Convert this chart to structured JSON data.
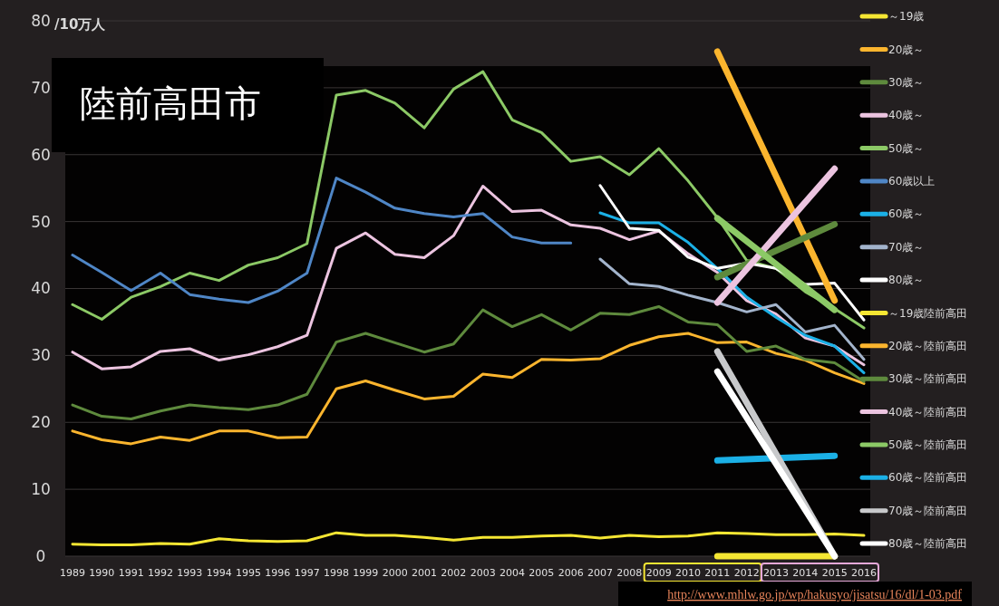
{
  "chart_data": {
    "type": "line",
    "ylabel": "/10万人",
    "categories": [
      "1989",
      "1990",
      "1991",
      "1992",
      "1993",
      "1994",
      "1995",
      "1996",
      "1997",
      "1998",
      "1999",
      "2000",
      "2001",
      "2002",
      "2003",
      "2004",
      "2005",
      "2006",
      "2007",
      "2008",
      "2009",
      "2010",
      "2011",
      "2012",
      "2013",
      "2014",
      "2015",
      "2016"
    ],
    "ylim": [
      0,
      80
    ],
    "yticks": [
      0,
      10,
      20,
      30,
      40,
      50,
      60,
      70,
      80
    ],
    "grid": "y",
    "legend": "right",
    "annotations": [
      "陸前高田市",
      "http://www.mhlw.go.jp/wp/hakusyo/jisatsu/16/dl/1-03.pdf"
    ],
    "series": [
      {
        "name": "～19歳",
        "color": "#f5e633",
        "values": [
          1.8,
          1.7,
          1.7,
          1.9,
          1.8,
          2.6,
          2.3,
          2.2,
          2.3,
          3.5,
          3.1,
          3.1,
          2.8,
          2.4,
          2.8,
          2.8,
          3.0,
          3.1,
          2.7,
          3.1,
          2.9,
          3.0,
          3.5,
          3.4,
          3.2,
          3.2,
          3.3,
          3.1
        ]
      },
      {
        "name": "20歳～",
        "color": "#fbb52e",
        "values": [
          18.7,
          17.4,
          16.8,
          17.8,
          17.3,
          18.7,
          18.7,
          17.7,
          17.8,
          25.0,
          26.2,
          24.8,
          23.5,
          23.9,
          27.2,
          26.7,
          29.4,
          29.3,
          29.5,
          31.5,
          32.8,
          33.3,
          31.9,
          32.0,
          30.3,
          29.3,
          27.4,
          25.8
        ]
      },
      {
        "name": "30歳～",
        "color": "#5e8a3d",
        "values": [
          22.6,
          20.9,
          20.5,
          21.7,
          22.6,
          22.2,
          21.9,
          22.6,
          24.2,
          32.0,
          33.3,
          31.9,
          30.5,
          31.7,
          36.8,
          34.3,
          36.1,
          33.8,
          36.3,
          36.1,
          37.3,
          35.0,
          34.6,
          30.6,
          31.4,
          29.4,
          28.9,
          26.1
        ]
      },
      {
        "name": "40歳～",
        "color": "#ecc4e0",
        "values": [
          30.5,
          28.0,
          28.3,
          30.6,
          31.0,
          29.3,
          30.1,
          31.3,
          33.0,
          46.0,
          48.3,
          45.1,
          44.6,
          47.9,
          55.3,
          51.5,
          51.7,
          49.5,
          49.0,
          47.3,
          48.6,
          45.2,
          42.4,
          38.2,
          36.2,
          32.6,
          31.4,
          28.6
        ]
      },
      {
        "name": "50歳～",
        "color": "#8cc966",
        "values": [
          37.6,
          35.4,
          38.7,
          40.3,
          42.3,
          41.2,
          43.5,
          44.6,
          46.7,
          68.9,
          69.6,
          67.7,
          64.0,
          69.8,
          72.4,
          65.2,
          63.3,
          59.0,
          59.7,
          57.0,
          60.9,
          56.1,
          50.6,
          44.2,
          43.0,
          39.5,
          37.0,
          34.1
        ]
      },
      {
        "name": "60歳以上",
        "color": "#4f86c6",
        "values": [
          45.0,
          42.4,
          39.7,
          42.3,
          39.1,
          38.4,
          37.9,
          39.6,
          42.3,
          56.5,
          54.4,
          52.0,
          51.2,
          50.7,
          51.2,
          47.7,
          46.8,
          46.8,
          null,
          null,
          null,
          null,
          null,
          null,
          null,
          null,
          null,
          null
        ]
      },
      {
        "name": "60歳～",
        "color": "#1bb0e6",
        "values": [
          null,
          null,
          null,
          null,
          null,
          null,
          null,
          null,
          null,
          null,
          null,
          null,
          null,
          null,
          null,
          null,
          null,
          null,
          51.3,
          49.8,
          49.8,
          46.9,
          43.0,
          38.7,
          35.7,
          33.0,
          31.4,
          27.4
        ]
      },
      {
        "name": "70歳～",
        "color": "#a3b4cc",
        "values": [
          null,
          null,
          null,
          null,
          null,
          null,
          null,
          null,
          null,
          null,
          null,
          null,
          null,
          null,
          null,
          null,
          null,
          null,
          44.4,
          40.7,
          40.3,
          39.0,
          37.9,
          36.5,
          37.6,
          33.5,
          34.5,
          29.4
        ]
      },
      {
        "name": "80歳～",
        "color": "#ffffff",
        "values": [
          null,
          null,
          null,
          null,
          null,
          null,
          null,
          null,
          null,
          null,
          null,
          null,
          null,
          null,
          null,
          null,
          null,
          null,
          55.4,
          49.0,
          48.7,
          44.7,
          43.0,
          43.8,
          43.0,
          40.6,
          40.8,
          35.3
        ]
      },
      {
        "name": "～19歳陸前高田",
        "color": "#f5e633",
        "values": [
          null,
          null,
          null,
          null,
          null,
          null,
          null,
          null,
          null,
          null,
          null,
          null,
          null,
          null,
          null,
          null,
          null,
          null,
          null,
          null,
          null,
          null,
          0,
          null,
          null,
          null,
          0,
          null
        ]
      },
      {
        "name": "20歳～陸前高田",
        "color": "#fbb52e",
        "values": [
          null,
          null,
          null,
          null,
          null,
          null,
          null,
          null,
          null,
          null,
          null,
          null,
          null,
          null,
          null,
          null,
          null,
          null,
          null,
          null,
          null,
          null,
          75.4,
          null,
          null,
          null,
          38.2,
          null
        ]
      },
      {
        "name": "30歳～陸前高田",
        "color": "#5e8a3d",
        "values": [
          null,
          null,
          null,
          null,
          null,
          null,
          null,
          null,
          null,
          null,
          null,
          null,
          null,
          null,
          null,
          null,
          null,
          null,
          null,
          null,
          null,
          null,
          41.7,
          null,
          null,
          null,
          49.6,
          null
        ]
      },
      {
        "name": "40歳～陸前高田",
        "color": "#ecc4e0",
        "values": [
          null,
          null,
          null,
          null,
          null,
          null,
          null,
          null,
          null,
          null,
          null,
          null,
          null,
          null,
          null,
          null,
          null,
          null,
          null,
          null,
          null,
          null,
          37.9,
          null,
          null,
          null,
          57.9,
          null
        ]
      },
      {
        "name": "50歳～陸前高田",
        "color": "#8cc966",
        "values": [
          null,
          null,
          null,
          null,
          null,
          null,
          null,
          null,
          null,
          null,
          null,
          null,
          null,
          null,
          null,
          null,
          null,
          null,
          null,
          null,
          null,
          null,
          50.5,
          null,
          null,
          null,
          36.8,
          null
        ]
      },
      {
        "name": "60歳～陸前高田",
        "color": "#1bb0e6",
        "values": [
          null,
          null,
          null,
          null,
          null,
          null,
          null,
          null,
          null,
          null,
          null,
          null,
          null,
          null,
          null,
          null,
          null,
          null,
          null,
          null,
          null,
          null,
          14.3,
          null,
          null,
          null,
          15.0,
          null
        ]
      },
      {
        "name": "70歳～陸前高田",
        "color": "#c8c9cb",
        "values": [
          null,
          null,
          null,
          null,
          null,
          null,
          null,
          null,
          null,
          null,
          null,
          null,
          null,
          null,
          null,
          null,
          null,
          null,
          null,
          null,
          null,
          null,
          30.6,
          null,
          null,
          null,
          0,
          null
        ]
      },
      {
        "name": "80歳～陸前高田",
        "color": "#ffffff",
        "values": [
          null,
          null,
          null,
          null,
          null,
          null,
          null,
          null,
          null,
          null,
          null,
          null,
          null,
          null,
          null,
          null,
          null,
          null,
          null,
          null,
          null,
          null,
          27.6,
          null,
          null,
          null,
          0,
          null
        ]
      }
    ]
  }
}
